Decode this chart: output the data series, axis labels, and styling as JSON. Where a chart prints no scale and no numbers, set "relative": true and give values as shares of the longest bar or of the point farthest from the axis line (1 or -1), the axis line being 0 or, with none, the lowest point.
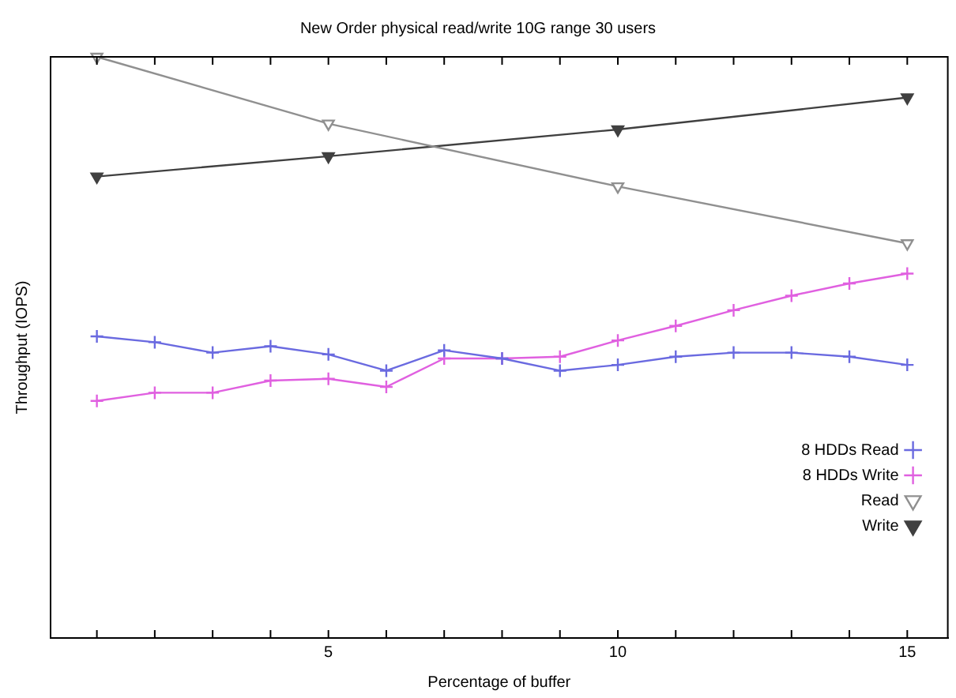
{
  "chart_data": {
    "type": "line",
    "title": "New Order physical read/write 10G range 30 users",
    "xlabel": "Percentage of buffer",
    "ylabel": "Throughput (IOPS)",
    "relative": true,
    "grid": false,
    "legend": "bottom right",
    "line_style": "solid",
    "x": [
      1,
      2,
      3,
      4,
      5,
      6,
      7,
      8,
      9,
      10,
      11,
      12,
      13,
      14,
      15
    ],
    "xlim": [
      0.2,
      15.7
    ],
    "xticks": [
      {
        "value": 1,
        "label": null
      },
      {
        "value": 2,
        "label": null
      },
      {
        "value": 3,
        "label": null
      },
      {
        "value": 4,
        "label": null
      },
      5,
      {
        "value": 6,
        "label": null
      },
      {
        "value": 7,
        "label": null
      },
      {
        "value": 8,
        "label": null
      },
      {
        "value": 9,
        "label": null
      },
      10,
      {
        "value": 11,
        "label": null
      },
      {
        "value": 12,
        "label": null
      },
      {
        "value": 13,
        "label": null
      },
      {
        "value": 14,
        "label": null
      },
      15
    ],
    "series": [
      {
        "name": "8 HDDs Read",
        "color": "#6a6ae0",
        "marker": "cross",
        "values": [
          0.519,
          0.509,
          0.491,
          0.502,
          0.488,
          0.46,
          0.495,
          0.481,
          0.46,
          0.47,
          0.484,
          0.491,
          0.491,
          0.484,
          0.47
        ]
      },
      {
        "name": "8 HDDs Write",
        "color": "#e060e0",
        "marker": "cross",
        "values": [
          0.408,
          0.422,
          0.422,
          0.443,
          0.446,
          0.432,
          0.481,
          0.481,
          0.484,
          0.512,
          0.537,
          0.564,
          0.589,
          0.61,
          0.627
        ]
      },
      {
        "name": "Read",
        "color": "#909090",
        "marker": "triangle",
        "x": [
          1,
          5,
          10,
          15
        ],
        "values": [
          1.0,
          0.885,
          0.777,
          0.679
        ]
      },
      {
        "name": "Write",
        "color": "#404040",
        "marker": "triangle",
        "x": [
          1,
          5,
          10,
          15
        ],
        "values": [
          0.794,
          0.829,
          0.875,
          0.93
        ]
      }
    ]
  }
}
